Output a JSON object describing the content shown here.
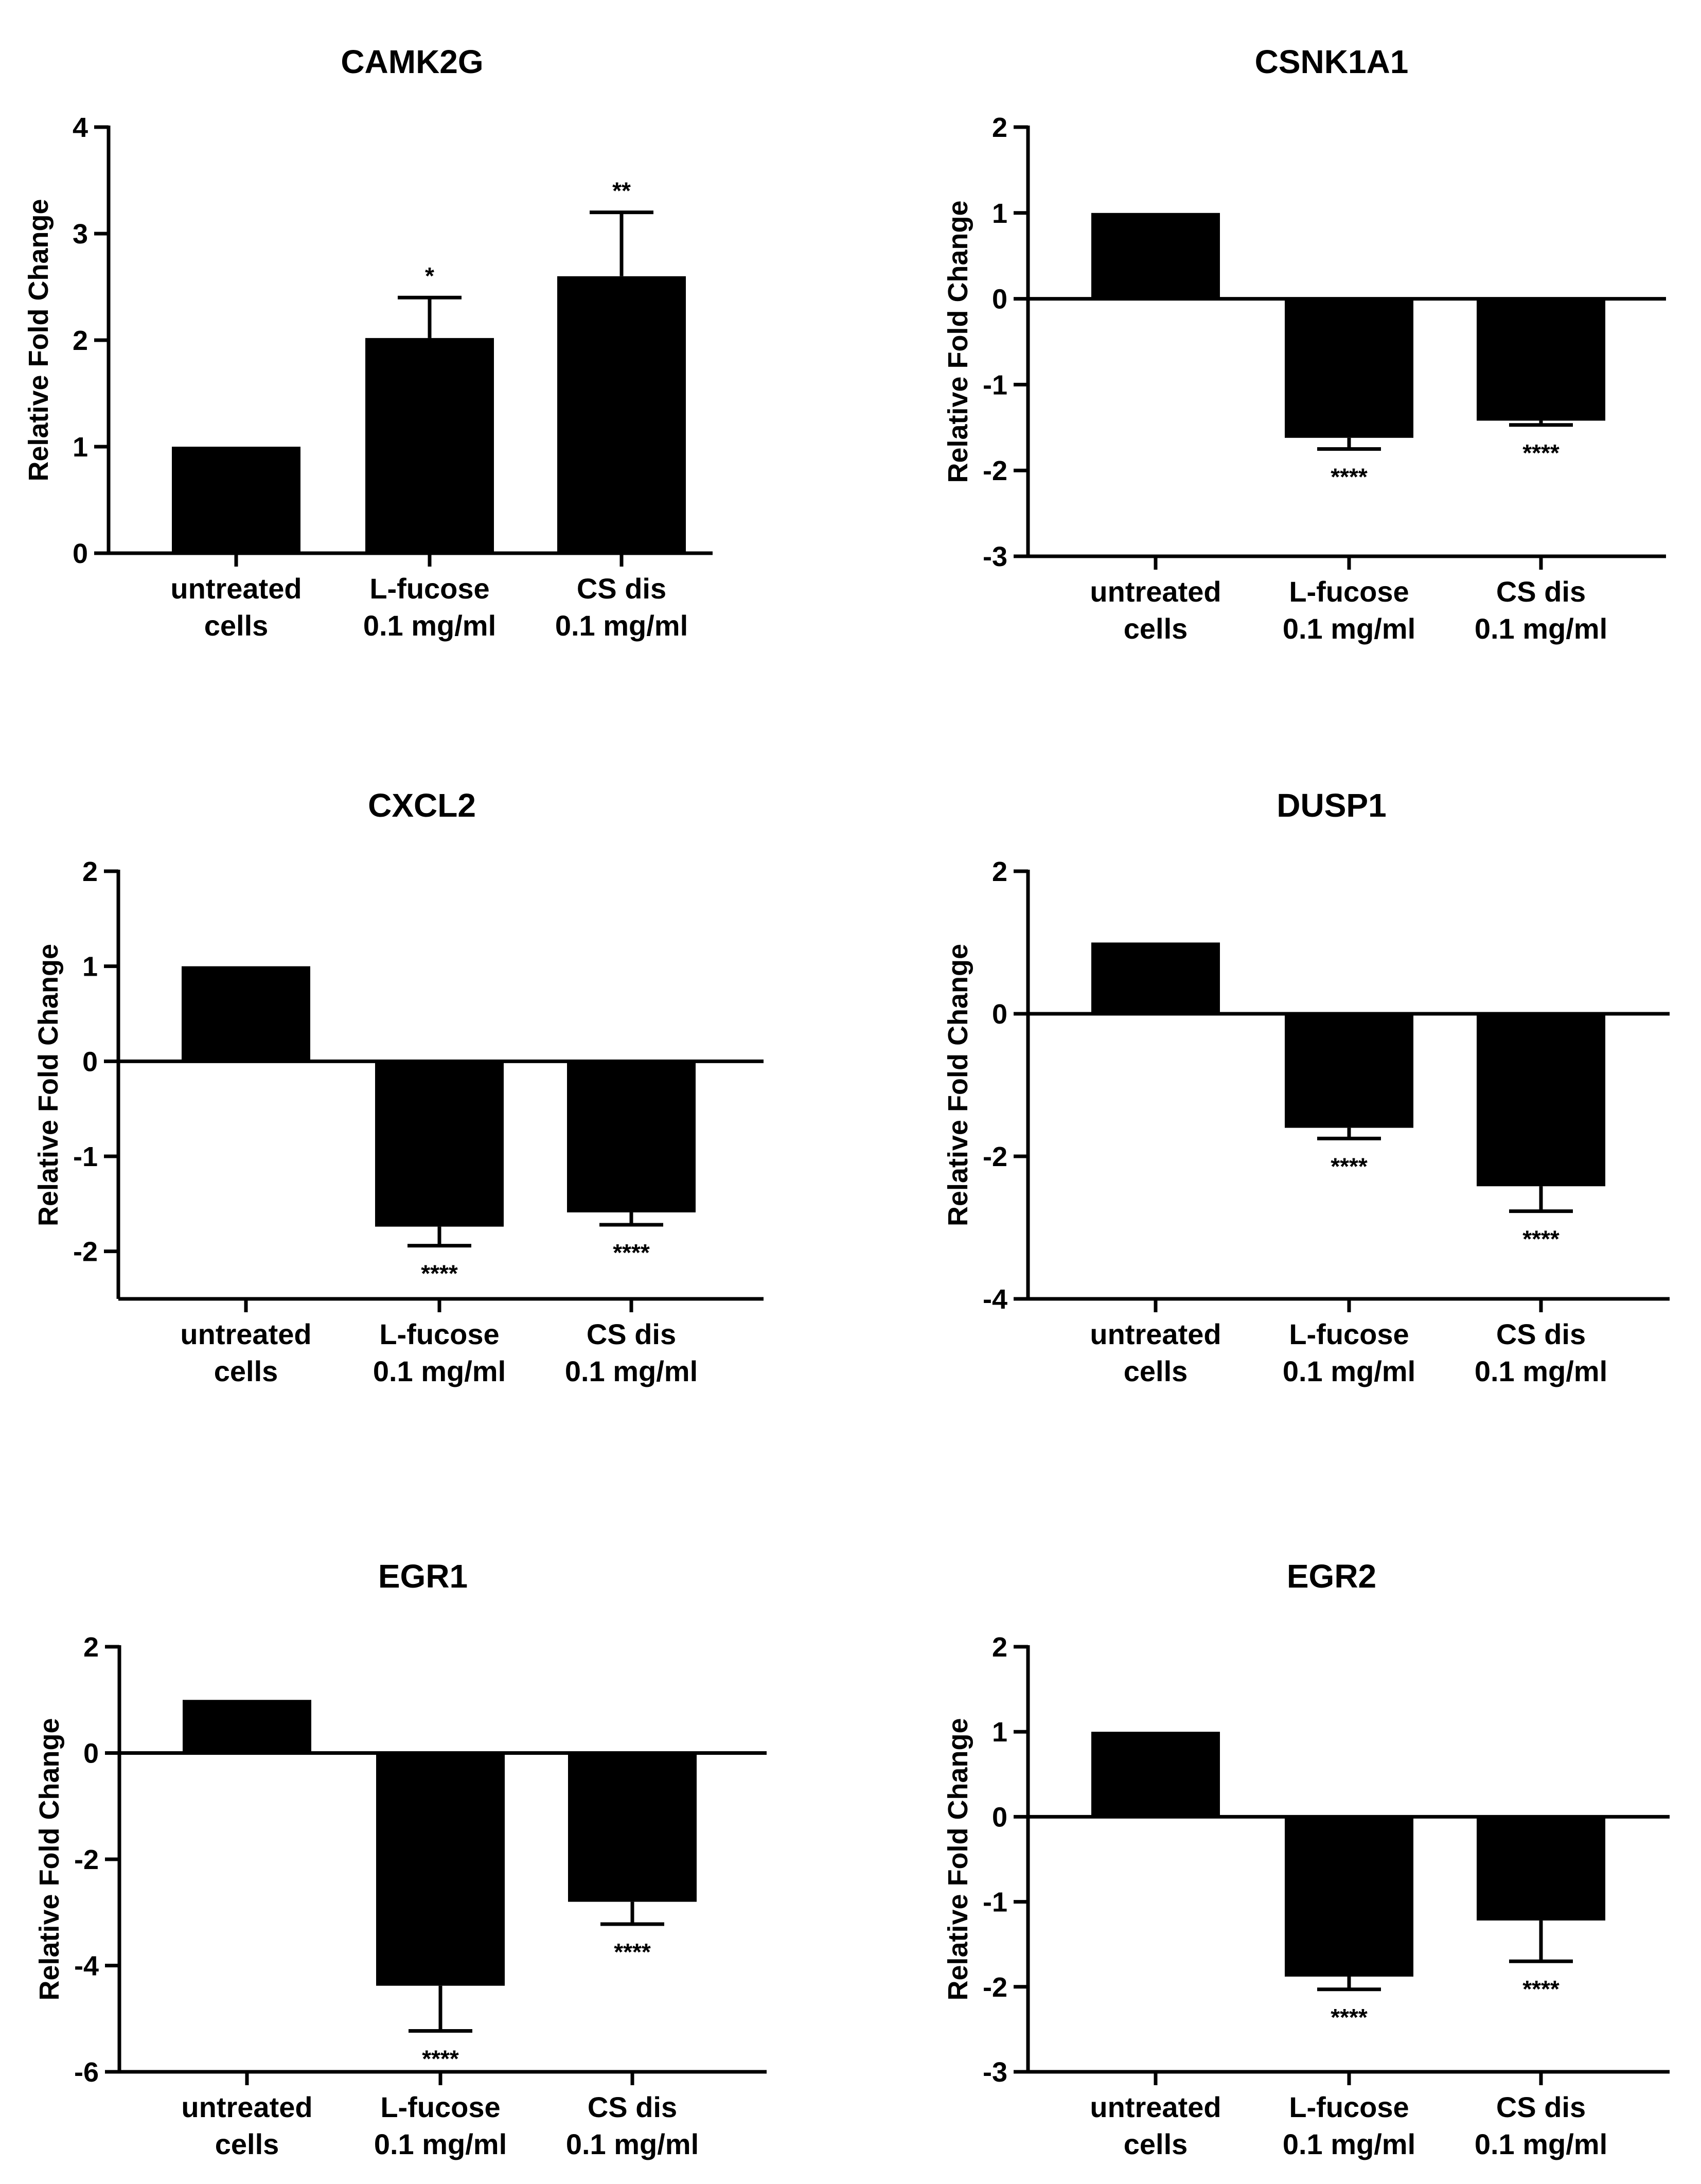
{
  "chart_data": [
    {
      "type": "bar",
      "title": "CAMK2G",
      "ylabel": "Relative Fold Change",
      "xlabel": "",
      "categories": [
        [
          "untreated",
          "cells"
        ],
        [
          "L-fucose",
          "0.1 mg/ml"
        ],
        [
          "CS dis",
          "0.1 mg/ml"
        ]
      ],
      "values": [
        1,
        2.02,
        2.6
      ],
      "errors": [
        0,
        0.38,
        0.6
      ],
      "significance": [
        "",
        "*",
        "**"
      ],
      "ylim": [
        0,
        4
      ],
      "yticks": [
        0,
        1,
        2,
        3,
        4
      ],
      "tick_labels": [
        "0",
        "1",
        "2",
        "3",
        "4"
      ]
    },
    {
      "type": "bar",
      "title": "CSNK1A1",
      "ylabel": "Relative Fold Change",
      "xlabel": "",
      "categories": [
        [
          "untreated",
          "cells"
        ],
        [
          "L-fucose",
          "0.1 mg/ml"
        ],
        [
          "CS dis",
          "0.1 mg/ml"
        ]
      ],
      "values": [
        1,
        -1.62,
        -1.42
      ],
      "errors": [
        0,
        0.13,
        0.05
      ],
      "significance": [
        "",
        "****",
        "****"
      ],
      "ylim": [
        -3,
        2
      ],
      "yticks": [
        -3,
        -2,
        -1,
        0,
        1,
        2
      ],
      "tick_labels": [
        "-3",
        "-2",
        "-1",
        "0",
        "1",
        "2"
      ]
    },
    {
      "type": "bar",
      "title": "CXCL2",
      "ylabel": "Relative Fold Change",
      "xlabel": "",
      "categories": [
        [
          "untreated",
          "cells"
        ],
        [
          "L-fucose",
          "0.1 mg/ml"
        ],
        [
          "CS dis",
          "0.1 mg/ml"
        ]
      ],
      "values": [
        1,
        -1.74,
        -1.59
      ],
      "errors": [
        0,
        0.2,
        0.13
      ],
      "significance": [
        "",
        "****",
        "****"
      ],
      "ylim": [
        -2.5,
        2
      ],
      "yticks": [
        -2,
        -1,
        0,
        1,
        2
      ],
      "tick_labels": [
        "-2",
        "-1",
        "0",
        "1",
        "2"
      ]
    },
    {
      "type": "bar",
      "title": "DUSP1",
      "ylabel": "Relative Fold Change",
      "xlabel": "",
      "categories": [
        [
          "untreated",
          "cells"
        ],
        [
          "L-fucose",
          "0.1 mg/ml"
        ],
        [
          "CS dis",
          "0.1 mg/ml"
        ]
      ],
      "values": [
        1,
        -1.6,
        -2.42
      ],
      "errors": [
        0,
        0.15,
        0.35
      ],
      "significance": [
        "",
        "****",
        "****"
      ],
      "ylim": [
        -4,
        2
      ],
      "yticks": [
        -4,
        -2,
        0,
        2
      ],
      "tick_labels": [
        "-4",
        "-2",
        "0",
        "2"
      ]
    },
    {
      "type": "bar",
      "title": "EGR1",
      "ylabel": "Relative Fold Change",
      "xlabel": "",
      "categories": [
        [
          "untreated",
          "cells"
        ],
        [
          "L-fucose",
          "0.1 mg/ml"
        ],
        [
          "CS dis",
          "0.1 mg/ml"
        ]
      ],
      "values": [
        1,
        -4.38,
        -2.8
      ],
      "errors": [
        0,
        0.85,
        0.42
      ],
      "significance": [
        "",
        "****",
        "****"
      ],
      "ylim": [
        -6,
        2
      ],
      "yticks": [
        -6,
        -4,
        -2,
        0,
        2
      ],
      "tick_labels": [
        "-6",
        "-4",
        "-2",
        "0",
        "2"
      ]
    },
    {
      "type": "bar",
      "title": "EGR2",
      "ylabel": "Relative Fold Change",
      "xlabel": "",
      "categories": [
        [
          "untreated",
          "cells"
        ],
        [
          "L-fucose",
          "0.1 mg/ml"
        ],
        [
          "CS dis",
          "0.1 mg/ml"
        ]
      ],
      "values": [
        1,
        -1.88,
        -1.22
      ],
      "errors": [
        0,
        0.15,
        0.48
      ],
      "significance": [
        "",
        "****",
        "****"
      ],
      "ylim": [
        -3,
        2
      ],
      "yticks": [
        -3,
        -2,
        -1,
        0,
        1,
        2
      ],
      "tick_labels": [
        "-3",
        "-2",
        "-1",
        "0",
        "1",
        "2"
      ]
    }
  ],
  "colors": {
    "bar": "#000000",
    "axis": "#000000",
    "background": "#ffffff"
  }
}
